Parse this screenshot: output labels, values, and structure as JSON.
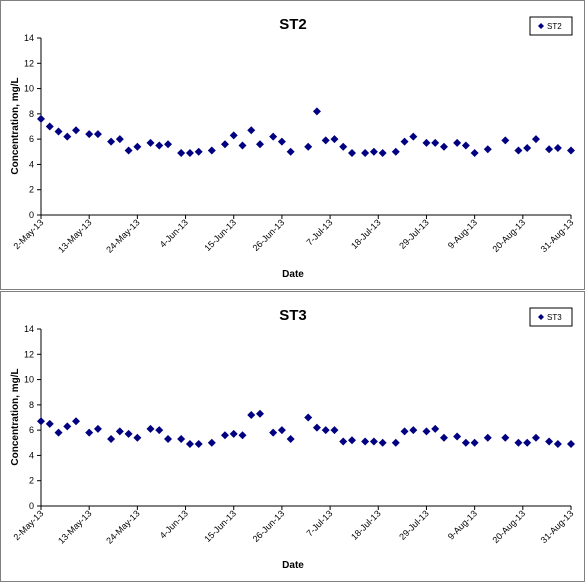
{
  "chart_data": [
    {
      "type": "scatter",
      "title": "ST2",
      "xlabel": "Date",
      "ylabel": "Concentration, mg/L",
      "ylim": [
        0,
        14
      ],
      "yticks": [
        "0",
        "2",
        "4",
        "6",
        "8",
        "10",
        "12",
        "14"
      ],
      "xlim": [
        "2013-05-02",
        "2013-08-31"
      ],
      "xticks": [
        "2-May-13",
        "13-May-13",
        "24-May-13",
        "4-Jun-13",
        "15-Jun-13",
        "26-Jun-13",
        "7-Jul-13",
        "18-Jul-13",
        "29-Jul-13",
        "9-Aug-13",
        "20-Aug-13",
        "31-Aug-13"
      ],
      "legend_position": "top-right",
      "grid": false,
      "color": "#000080",
      "series": [
        {
          "name": "ST2",
          "x": [
            "2013-05-02",
            "2013-05-04",
            "2013-05-06",
            "2013-05-08",
            "2013-05-10",
            "2013-05-13",
            "2013-05-15",
            "2013-05-18",
            "2013-05-20",
            "2013-05-22",
            "2013-05-24",
            "2013-05-27",
            "2013-05-29",
            "2013-05-31",
            "2013-06-03",
            "2013-06-05",
            "2013-06-07",
            "2013-06-10",
            "2013-06-13",
            "2013-06-15",
            "2013-06-17",
            "2013-06-19",
            "2013-06-21",
            "2013-06-24",
            "2013-06-26",
            "2013-06-28",
            "2013-07-02",
            "2013-07-04",
            "2013-07-06",
            "2013-07-08",
            "2013-07-10",
            "2013-07-12",
            "2013-07-15",
            "2013-07-17",
            "2013-07-19",
            "2013-07-22",
            "2013-07-24",
            "2013-07-26",
            "2013-07-29",
            "2013-07-31",
            "2013-08-02",
            "2013-08-05",
            "2013-08-07",
            "2013-08-09",
            "2013-08-12",
            "2013-08-16",
            "2013-08-19",
            "2013-08-21",
            "2013-08-23",
            "2013-08-26",
            "2013-08-28",
            "2013-08-31"
          ],
          "y": [
            7.6,
            7.0,
            6.6,
            6.2,
            6.7,
            6.4,
            6.4,
            5.8,
            6.0,
            5.1,
            5.4,
            5.7,
            5.5,
            5.6,
            4.9,
            4.9,
            5.0,
            5.1,
            5.6,
            6.3,
            5.5,
            6.7,
            5.6,
            6.2,
            5.8,
            5.0,
            5.4,
            8.2,
            5.9,
            6.0,
            5.4,
            4.9,
            4.9,
            5.0,
            4.9,
            5.0,
            5.8,
            6.2,
            5.7,
            5.7,
            5.4,
            5.7,
            5.5,
            4.9,
            5.2,
            5.9,
            5.1,
            5.3,
            6.0,
            5.2,
            5.3,
            5.1
          ]
        }
      ]
    },
    {
      "type": "scatter",
      "title": "ST3",
      "xlabel": "Date",
      "ylabel": "Concentration, mg/L",
      "ylim": [
        0,
        14
      ],
      "yticks": [
        "0",
        "2",
        "4",
        "6",
        "8",
        "10",
        "12",
        "14"
      ],
      "xlim": [
        "2013-05-02",
        "2013-08-31"
      ],
      "xticks": [
        "2-May-13",
        "13-May-13",
        "24-May-13",
        "4-Jun-13",
        "15-Jun-13",
        "26-Jun-13",
        "7-Jul-13",
        "18-Jul-13",
        "29-Jul-13",
        "9-Aug-13",
        "20-Aug-13",
        "31-Aug-13"
      ],
      "legend_position": "top-right",
      "grid": false,
      "color": "#000080",
      "series": [
        {
          "name": "ST3",
          "x": [
            "2013-05-02",
            "2013-05-04",
            "2013-05-06",
            "2013-05-08",
            "2013-05-10",
            "2013-05-13",
            "2013-05-15",
            "2013-05-18",
            "2013-05-20",
            "2013-05-22",
            "2013-05-24",
            "2013-05-27",
            "2013-05-29",
            "2013-05-31",
            "2013-06-03",
            "2013-06-05",
            "2013-06-07",
            "2013-06-10",
            "2013-06-13",
            "2013-06-15",
            "2013-06-17",
            "2013-06-19",
            "2013-06-21",
            "2013-06-24",
            "2013-06-26",
            "2013-06-28",
            "2013-07-02",
            "2013-07-04",
            "2013-07-06",
            "2013-07-08",
            "2013-07-10",
            "2013-07-12",
            "2013-07-15",
            "2013-07-17",
            "2013-07-19",
            "2013-07-22",
            "2013-07-24",
            "2013-07-26",
            "2013-07-29",
            "2013-07-31",
            "2013-08-02",
            "2013-08-05",
            "2013-08-07",
            "2013-08-09",
            "2013-08-12",
            "2013-08-16",
            "2013-08-19",
            "2013-08-21",
            "2013-08-23",
            "2013-08-26",
            "2013-08-28",
            "2013-08-31"
          ],
          "y": [
            6.7,
            6.5,
            5.8,
            6.3,
            6.7,
            5.8,
            6.1,
            5.3,
            5.9,
            5.7,
            5.4,
            6.1,
            6.0,
            5.3,
            5.3,
            4.9,
            4.9,
            5.0,
            5.6,
            5.7,
            5.6,
            7.2,
            7.3,
            5.8,
            6.0,
            5.3,
            7.0,
            6.2,
            6.0,
            6.0,
            5.1,
            5.2,
            5.1,
            5.1,
            5.0,
            5.0,
            5.9,
            6.0,
            5.9,
            6.1,
            5.4,
            5.5,
            5.0,
            5.0,
            5.4,
            5.4,
            5.0,
            5.0,
            5.4,
            5.1,
            4.9,
            4.9
          ]
        }
      ]
    }
  ]
}
